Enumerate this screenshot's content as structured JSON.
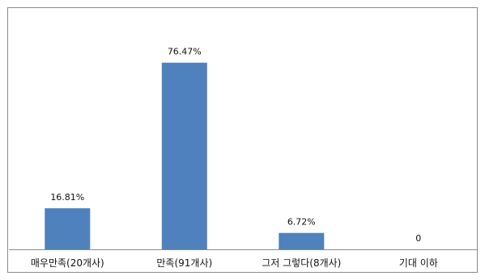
{
  "chart_data": {
    "type": "bar",
    "categories": [
      "매우만족(20개사)",
      "만족(91개사)",
      "그저 그렇다(8개사)",
      "기대 이하"
    ],
    "values": [
      16.81,
      76.47,
      6.72,
      0
    ],
    "data_labels": [
      "16.81%",
      "76.47%",
      "6.72%",
      "0"
    ],
    "title": "",
    "xlabel": "",
    "ylabel": "",
    "ylim": [
      0,
      100
    ],
    "grid": false,
    "legend": "none",
    "bar_color": "#4f81bd"
  }
}
